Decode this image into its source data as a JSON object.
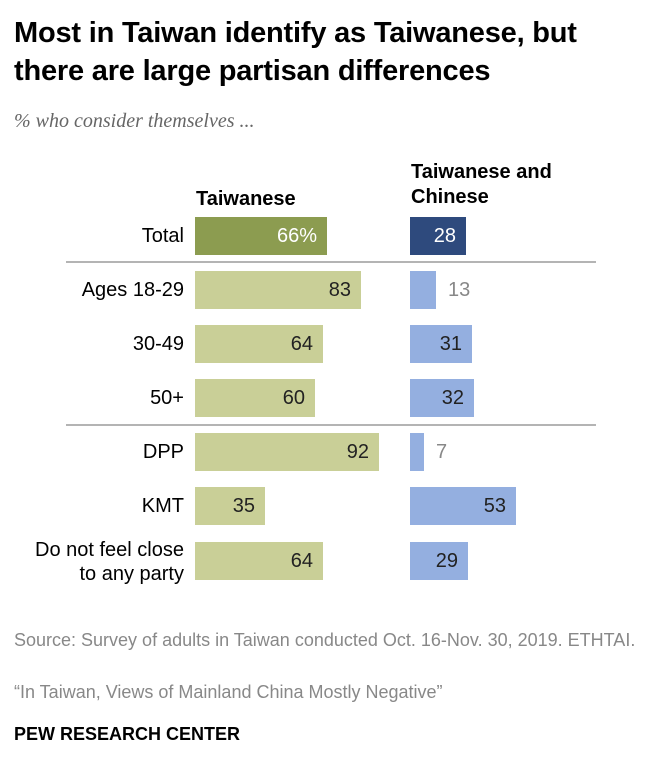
{
  "title": "Most in Taiwan identify as Taiwanese, but there are large partisan differences",
  "subtitle": "% who consider themselves ...",
  "colors": {
    "total_taiwanese": "#8c9c50",
    "total_both": "#2e4a7d",
    "taiwanese": "#c9cf97",
    "both": "#94afe0",
    "dark_label": "#222222",
    "light_label": "#888888",
    "divider": "#888888"
  },
  "chart_data": {
    "type": "bar",
    "orientation": "horizontal",
    "categories": [
      "Total",
      "Ages 18-29",
      "30-49",
      "50+",
      "DPP",
      "KMT",
      "Do not feel close to any party"
    ],
    "series": [
      {
        "name": "Taiwanese",
        "values": [
          66,
          83,
          64,
          60,
          92,
          35,
          64
        ],
        "labels": [
          "66%",
          "83",
          "64",
          "60",
          "92",
          "35",
          "64"
        ]
      },
      {
        "name": "Taiwanese and Chinese",
        "values": [
          28,
          13,
          31,
          32,
          7,
          53,
          29
        ],
        "labels": [
          "28",
          "13",
          "31",
          "32",
          "7",
          "53",
          "29"
        ]
      }
    ],
    "xlim": [
      0,
      100
    ]
  },
  "source": "Source: Survey of adults in Taiwan conducted Oct. 16-Nov. 30, 2019. ETHTAI.",
  "report_title": "“In Taiwan, Views of Mainland China Mostly Negative”",
  "brand": "PEW RESEARCH CENTER"
}
